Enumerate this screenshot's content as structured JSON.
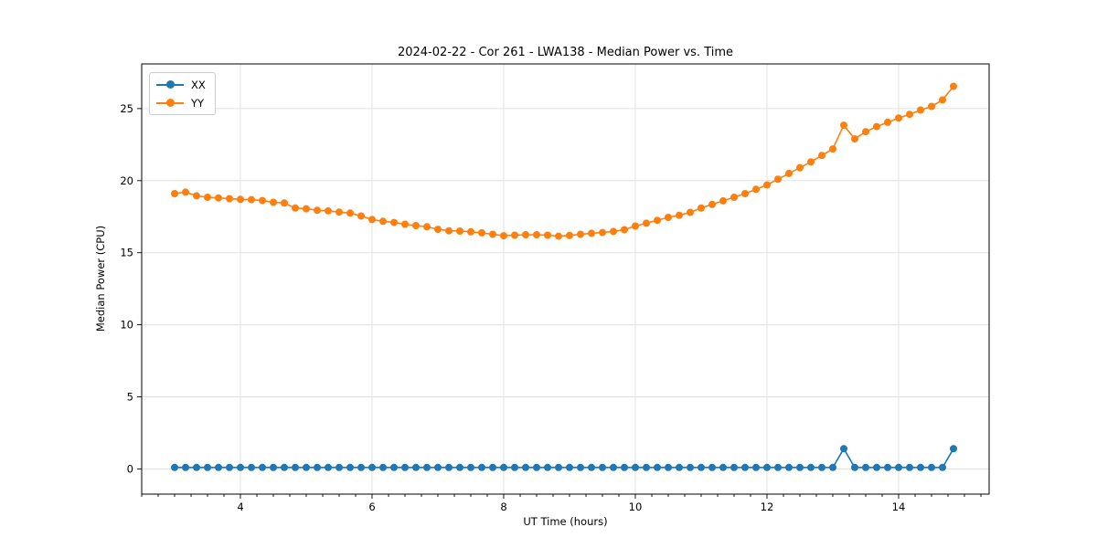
{
  "figure": {
    "background": "#ffffff",
    "text_color": "#000000",
    "grid_color": "#e0e0e0",
    "spine_color": "#000000"
  },
  "chart_data": {
    "type": "line",
    "title": "2024-02-22 - Cor 261 - LWA138 - Median Power vs. Time",
    "xlabel": "UT Time (hours)",
    "ylabel": "Median Power (CPU)",
    "xlim": [
      2.5,
      15.375
    ],
    "ylim": [
      -1.75,
      28.1
    ],
    "x_ticks": [
      4,
      6,
      8,
      10,
      12,
      14
    ],
    "x_tick_labels": [
      "4",
      "6",
      "8",
      "10",
      "12",
      "14"
    ],
    "x_minor_tick_step": 0.25,
    "y_ticks": [
      0,
      5,
      10,
      15,
      20,
      25
    ],
    "y_tick_labels": [
      "0",
      "5",
      "10",
      "15",
      "20",
      "25"
    ],
    "grid": true,
    "legend_position": "upper-left",
    "x": [
      3.0,
      3.167,
      3.333,
      3.5,
      3.667,
      3.833,
      4.0,
      4.167,
      4.333,
      4.5,
      4.667,
      4.833,
      5.0,
      5.167,
      5.333,
      5.5,
      5.667,
      5.833,
      6.0,
      6.167,
      6.333,
      6.5,
      6.667,
      6.833,
      7.0,
      7.167,
      7.333,
      7.5,
      7.667,
      7.833,
      8.0,
      8.167,
      8.333,
      8.5,
      8.667,
      8.833,
      9.0,
      9.167,
      9.333,
      9.5,
      9.667,
      9.833,
      10.0,
      10.167,
      10.333,
      10.5,
      10.667,
      10.833,
      11.0,
      11.167,
      11.333,
      11.5,
      11.667,
      11.833,
      12.0,
      12.167,
      12.333,
      12.5,
      12.667,
      12.833,
      13.0,
      13.167,
      13.333,
      13.5,
      13.667,
      13.833,
      14.0,
      14.167,
      14.333,
      14.5,
      14.667,
      14.833
    ],
    "series": [
      {
        "name": "XX",
        "color": "#1f77b4",
        "values": [
          0.1,
          0.1,
          0.1,
          0.1,
          0.1,
          0.1,
          0.1,
          0.1,
          0.1,
          0.1,
          0.1,
          0.1,
          0.1,
          0.1,
          0.1,
          0.1,
          0.1,
          0.1,
          0.1,
          0.1,
          0.1,
          0.1,
          0.1,
          0.1,
          0.1,
          0.1,
          0.1,
          0.1,
          0.1,
          0.1,
          0.1,
          0.1,
          0.1,
          0.1,
          0.1,
          0.1,
          0.1,
          0.1,
          0.1,
          0.1,
          0.1,
          0.1,
          0.1,
          0.1,
          0.1,
          0.1,
          0.1,
          0.1,
          0.1,
          0.1,
          0.1,
          0.1,
          0.1,
          0.1,
          0.1,
          0.1,
          0.1,
          0.1,
          0.1,
          0.1,
          0.1,
          1.4,
          0.1,
          0.1,
          0.1,
          0.1,
          0.1,
          0.1,
          0.1,
          0.1,
          0.1,
          1.4
        ]
      },
      {
        "name": "YY",
        "color": "#ff7f0e",
        "values": [
          19.1,
          19.2,
          18.95,
          18.85,
          18.8,
          18.75,
          18.7,
          18.68,
          18.62,
          18.5,
          18.45,
          18.1,
          18.05,
          17.95,
          17.9,
          17.82,
          17.75,
          17.55,
          17.3,
          17.18,
          17.1,
          16.98,
          16.88,
          16.8,
          16.62,
          16.52,
          16.5,
          16.45,
          16.38,
          16.28,
          16.18,
          16.22,
          16.25,
          16.25,
          16.22,
          16.15,
          16.2,
          16.28,
          16.35,
          16.4,
          16.48,
          16.6,
          16.85,
          17.05,
          17.25,
          17.45,
          17.6,
          17.8,
          18.1,
          18.35,
          18.6,
          18.85,
          19.1,
          19.4,
          19.7,
          20.1,
          20.5,
          20.9,
          21.3,
          21.75,
          22.2,
          23.85,
          22.9,
          23.4,
          23.75,
          24.05,
          24.35,
          24.6,
          24.9,
          25.15,
          25.6,
          26.55
        ]
      }
    ]
  }
}
